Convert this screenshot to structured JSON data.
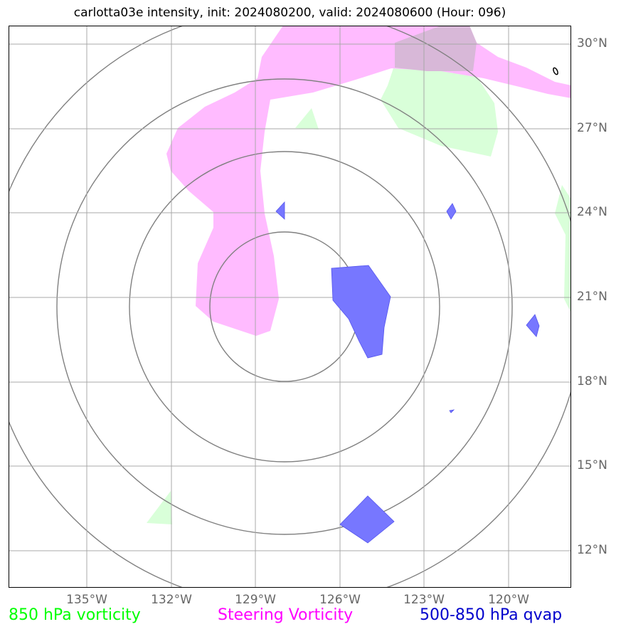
{
  "title": "carlotta03e intensity, init: 2024080200, valid: 2024080600 (Hour: 096)",
  "colors": {
    "vorticity_850": "#ccffcc",
    "steering_vorticity": "#ffaaff",
    "qvap": "#6666ff",
    "range_rings": "#808080",
    "gridlines": "#a0a0a0",
    "axis_labels": "#666666"
  },
  "lat_labels": [
    "30°N",
    "27°N",
    "24°N",
    "21°N",
    "18°N",
    "15°N",
    "12°N"
  ],
  "lon_labels": [
    "135°W",
    "132°W",
    "129°W",
    "126°W",
    "123°W",
    "120°W"
  ],
  "legend": {
    "vorticity_850": {
      "label": "850 hPa vorticity",
      "color": "#00ff00"
    },
    "steering": {
      "label": "Steering Vorticity",
      "color": "#ff00ff"
    },
    "qvap": {
      "label": "500-850 hPa qvap",
      "color": "#0000cc"
    }
  }
}
